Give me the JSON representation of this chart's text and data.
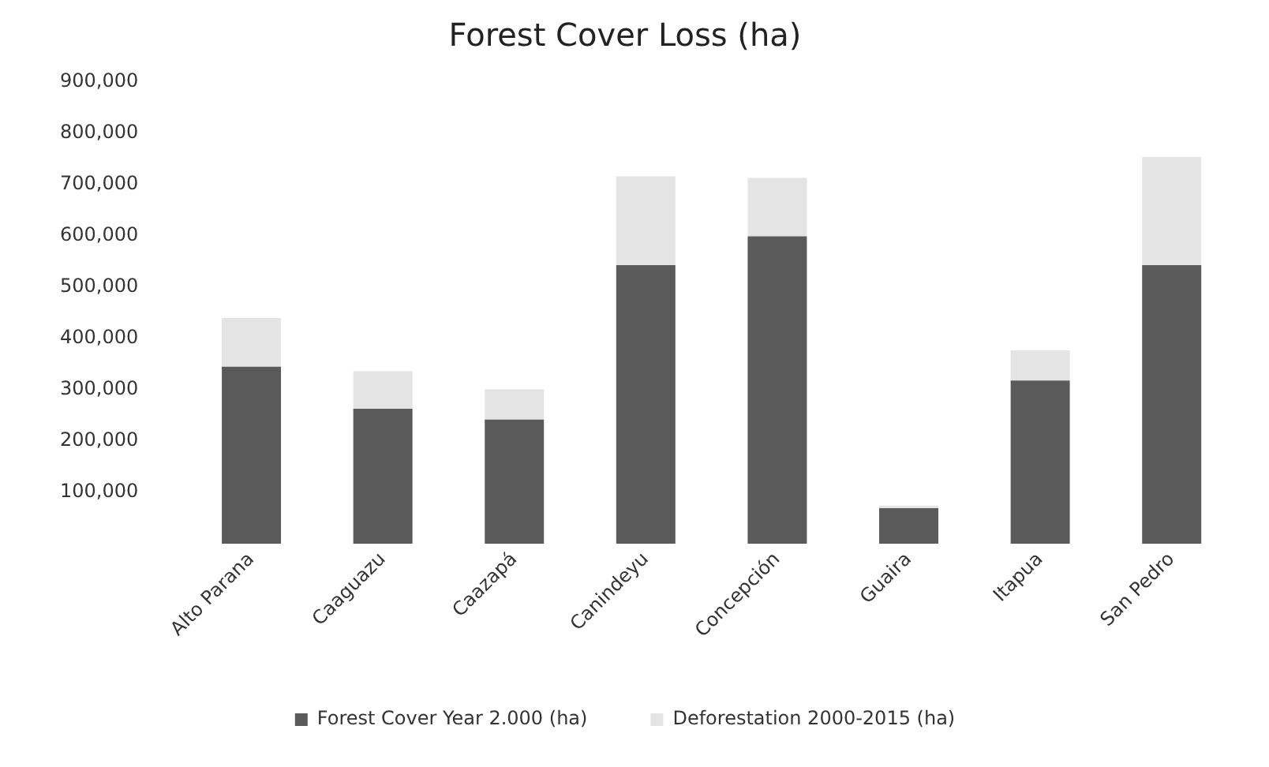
{
  "chart_data": {
    "type": "bar",
    "title": "Forest Cover Loss (ha)",
    "categories": [
      "Alto Parana",
      "Caaguazu",
      "Caazapá",
      "Canindeyu",
      "Concepción",
      "Guaira",
      "Itapua",
      "San Pedro"
    ],
    "series": [
      {
        "name": "Forest Cover Year 2.000 (ha)",
        "color": "#5a5a5a",
        "values": [
          345000,
          263000,
          242000,
          543000,
          599000,
          69000,
          318000,
          543000
        ]
      },
      {
        "name": "Deforestation 2000-2015 (ha)",
        "color": "#e4e4e4",
        "values": [
          95000,
          73000,
          59000,
          173000,
          114000,
          5000,
          59000,
          211000
        ]
      }
    ],
    "stacked": true,
    "ylim": [
      0,
      900000
    ],
    "yticks": [
      {
        "value": 100000,
        "label": "100,000"
      },
      {
        "value": 200000,
        "label": "200,000"
      },
      {
        "value": 300000,
        "label": "300,000"
      },
      {
        "value": 400000,
        "label": "400,000"
      },
      {
        "value": 500000,
        "label": "500,000"
      },
      {
        "value": 600000,
        "label": "600,000"
      },
      {
        "value": 700000,
        "label": "700,000"
      },
      {
        "value": 800000,
        "label": "800,000"
      },
      {
        "value": 900000,
        "label": "900,000"
      }
    ],
    "grid": false,
    "legend": "bottom"
  }
}
